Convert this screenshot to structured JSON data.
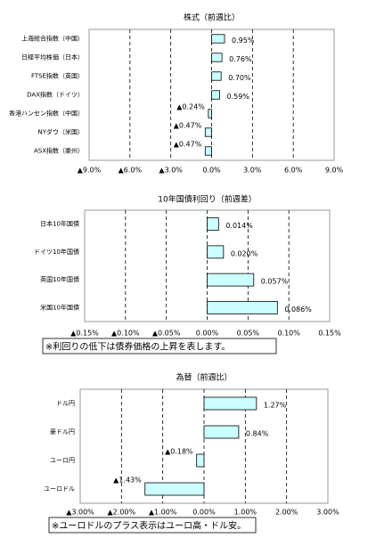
{
  "chart_data": [
    {
      "type": "bar",
      "orientation": "horizontal",
      "title": "株式（前週比）",
      "categories": [
        "上海総合指数（中国）",
        "日経平均株価（日本）",
        "FTSE指数（英国）",
        "DAX指数（ドイツ）",
        "香港ハンセン指数（中国）",
        "NYダウ（米国）",
        "ASX指数（豪州）"
      ],
      "values": [
        0.95,
        0.76,
        0.7,
        0.59,
        -0.24,
        -0.47,
        -0.47
      ],
      "value_labels": [
        "0.95%",
        "0.76%",
        "0.70%",
        "0.59%",
        "▲0.24%",
        "▲0.47%",
        "▲0.47%"
      ],
      "color": "#ccffff",
      "grid": true,
      "xlim": [
        -9,
        9
      ],
      "xticks": [
        {
          "value": -9,
          "label": "▲9.0%"
        },
        {
          "value": -6,
          "label": "▲6.0%"
        },
        {
          "value": -3,
          "label": "▲3.0%"
        },
        {
          "value": 0,
          "label": "0.0%"
        },
        {
          "value": 3,
          "label": "3.0%"
        },
        {
          "value": 6,
          "label": "6.0%"
        },
        {
          "value": 9,
          "label": "9.0%"
        }
      ]
    },
    {
      "type": "bar",
      "orientation": "horizontal",
      "title": "10年国債利回り（前週差）",
      "categories": [
        "日本10年国債",
        "ドイツ10年国債",
        "英国10年国債",
        "米国10年国債"
      ],
      "values": [
        0.014,
        0.02,
        0.057,
        0.086
      ],
      "value_labels": [
        "0.014%",
        "0.020%",
        "0.057%",
        "0.086%"
      ],
      "color": "#ccffff",
      "grid": true,
      "xlim": [
        -0.15,
        0.15
      ],
      "xticks": [
        {
          "value": -0.15,
          "label": "▲0.15%"
        },
        {
          "value": -0.1,
          "label": "▲0.10%"
        },
        {
          "value": -0.05,
          "label": "▲0.05%"
        },
        {
          "value": 0,
          "label": "0.00%"
        },
        {
          "value": 0.05,
          "label": "0.05%"
        },
        {
          "value": 0.1,
          "label": "0.10%"
        },
        {
          "value": 0.15,
          "label": "0.15%"
        }
      ],
      "annotation": "※利回りの低下は債券価格の上昇を表します。"
    },
    {
      "type": "bar",
      "orientation": "horizontal",
      "title": "為替（前週比）",
      "categories": [
        "ドル円",
        "豪ドル円",
        "ユーロ円",
        "ユーロドル"
      ],
      "values": [
        1.27,
        0.84,
        -0.18,
        -1.43
      ],
      "value_labels": [
        "1.27%",
        "0.84%",
        "▲0.18%",
        "▲1.43%"
      ],
      "color": "#ccffff",
      "grid": true,
      "xlim": [
        -3,
        3
      ],
      "xticks": [
        {
          "value": -3,
          "label": "▲3.00%"
        },
        {
          "value": -2,
          "label": "▲2.00%"
        },
        {
          "value": -1,
          "label": "▲1.00%"
        },
        {
          "value": 0,
          "label": "0.00%"
        },
        {
          "value": 1,
          "label": "1.00%"
        },
        {
          "value": 2,
          "label": "2.00%"
        },
        {
          "value": 3,
          "label": "3.00%"
        }
      ],
      "annotation": "※ユーロドルのプラス表示はユーロ高・ドル安。"
    }
  ]
}
